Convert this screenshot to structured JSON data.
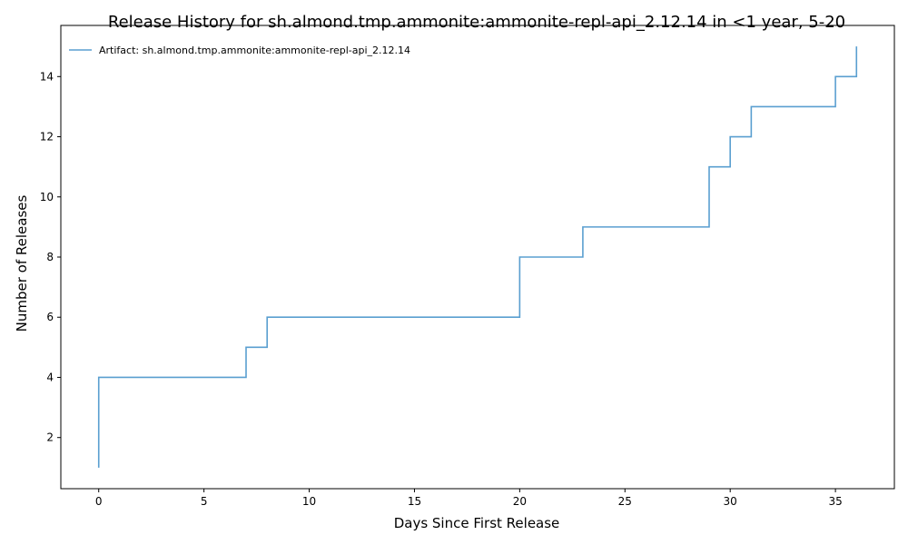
{
  "chart_data": {
    "type": "line",
    "title": "Release History for sh.almond.tmp.ammonite:ammonite-repl-api_2.12.14 in <1 year, 5-20",
    "xlabel": "Days Since First Release",
    "ylabel": "Number of Releases",
    "xlim": [
      -1.8,
      37.8
    ],
    "ylim": [
      0.3,
      15.7
    ],
    "xticks": [
      0,
      5,
      10,
      15,
      20,
      25,
      30,
      35
    ],
    "yticks": [
      2,
      4,
      6,
      8,
      10,
      12,
      14
    ],
    "grid": false,
    "legend_position": "top-left",
    "step": "post",
    "series": [
      {
        "name": "Artifact: sh.almond.tmp.ammonite:ammonite-repl-api_2.12.14",
        "color": "#5a9fd0",
        "x": [
          0,
          0,
          7,
          8,
          20,
          23,
          29,
          30,
          31,
          35,
          36
        ],
        "y": [
          1,
          4,
          5,
          6,
          8,
          9,
          11,
          12,
          13,
          14,
          15
        ]
      }
    ]
  }
}
